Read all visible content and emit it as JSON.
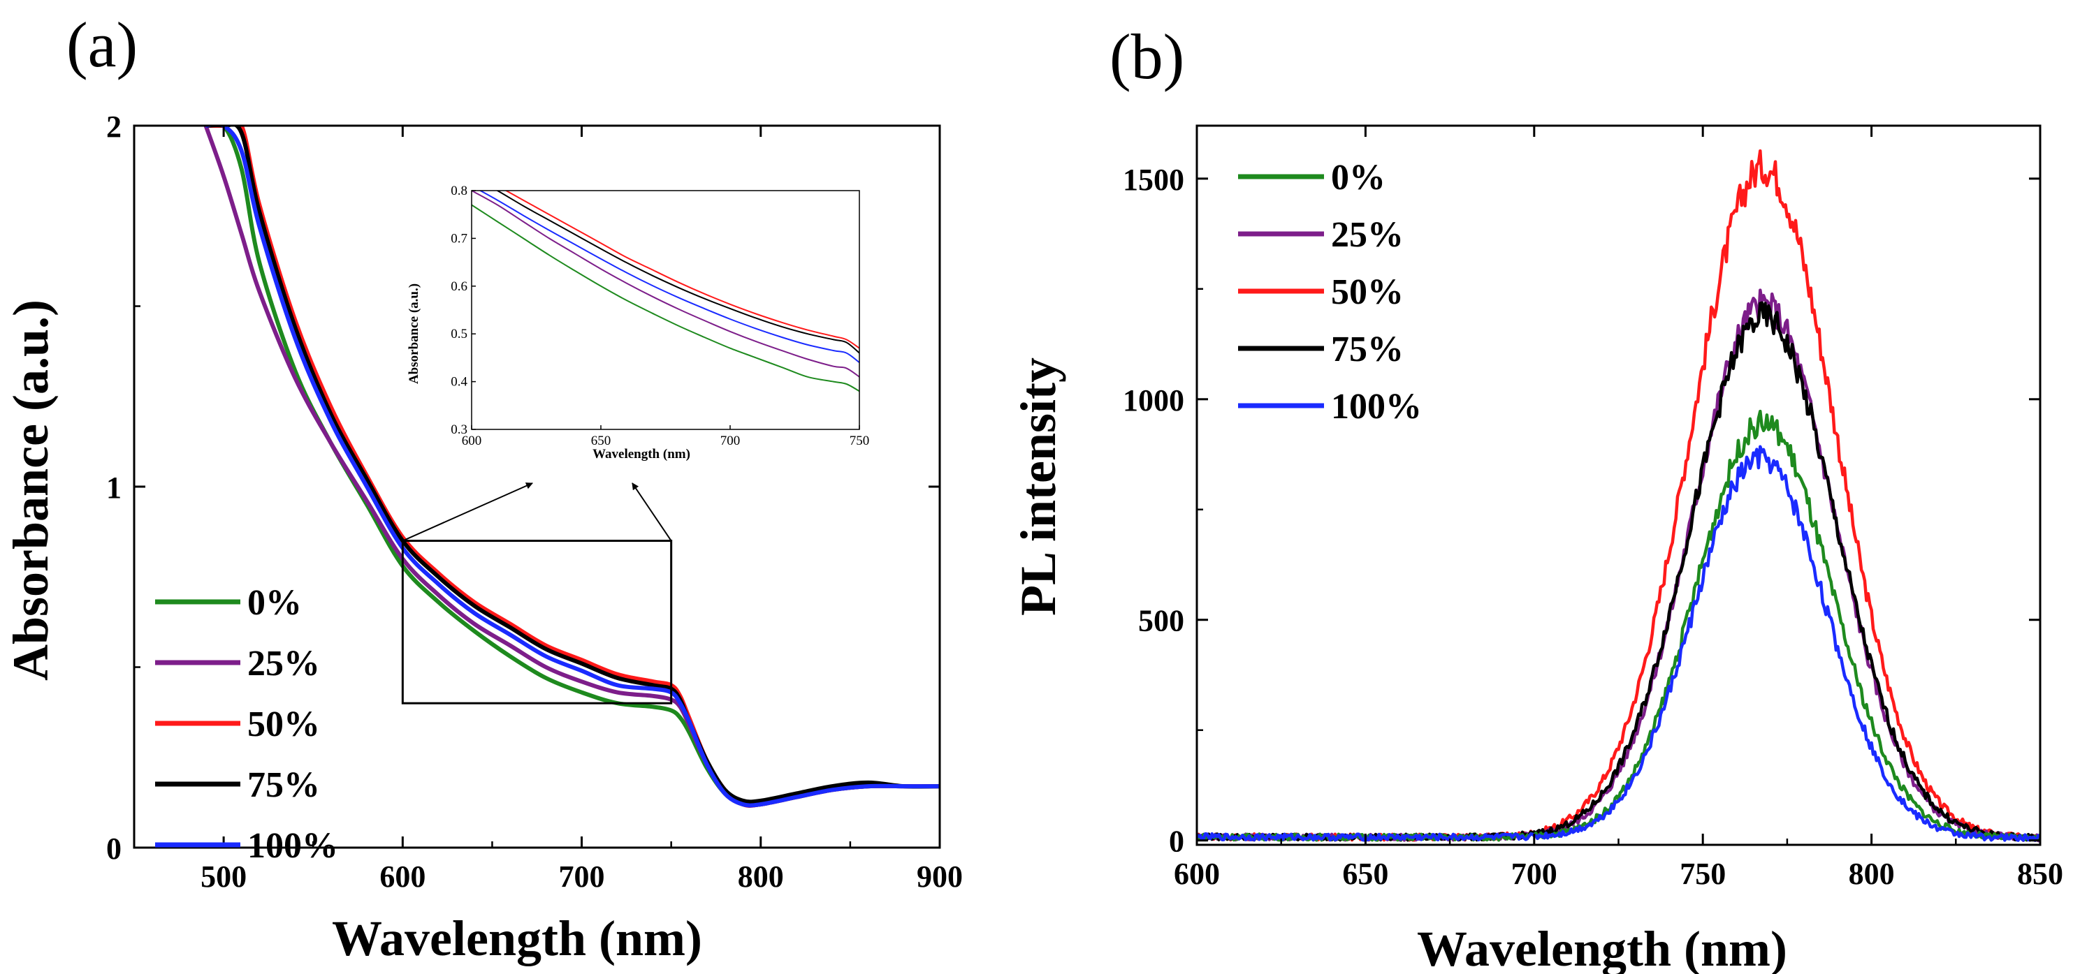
{
  "colors": {
    "0%": "#1e8a1e",
    "25%": "#7d1e8a",
    "50%": "#ff1a1a",
    "75%": "#000000",
    "100%": "#1a2bff"
  },
  "chart_data": [
    {
      "panel": "(a)",
      "type": "line",
      "xlabel": "Wavelength (nm)",
      "ylabel": "Absorbance (a.u.)",
      "xlim": [
        450,
        900
      ],
      "ylim": [
        0,
        2
      ],
      "xticks": [
        "500",
        "600",
        "700",
        "800",
        "900"
      ],
      "yticks": [
        "0",
        "1",
        "2"
      ],
      "legend_position": "bottom-left",
      "legend": [
        "0%",
        "25%",
        "50%",
        "75%",
        "100%"
      ],
      "x": [
        490,
        500,
        510,
        520,
        540,
        560,
        580,
        600,
        620,
        640,
        660,
        680,
        700,
        720,
        740,
        750,
        755,
        760,
        770,
        780,
        790,
        800,
        820,
        840,
        860,
        880,
        900
      ],
      "series": [
        {
          "name": "0%",
          "values": [
            2.0,
            2.0,
            1.88,
            1.62,
            1.32,
            1.12,
            0.95,
            0.78,
            0.68,
            0.6,
            0.53,
            0.47,
            0.43,
            0.4,
            0.39,
            0.38,
            0.36,
            0.32,
            0.22,
            0.15,
            0.12,
            0.12,
            0.14,
            0.16,
            0.17,
            0.17,
            0.17
          ]
        },
        {
          "name": "25%",
          "values": [
            2.0,
            1.86,
            1.7,
            1.54,
            1.3,
            1.12,
            0.96,
            0.8,
            0.7,
            0.62,
            0.56,
            0.5,
            0.46,
            0.43,
            0.42,
            0.41,
            0.39,
            0.34,
            0.23,
            0.15,
            0.12,
            0.12,
            0.14,
            0.16,
            0.17,
            0.17,
            0.17
          ]
        },
        {
          "name": "50%",
          "values": [
            2.0,
            2.0,
            2.0,
            1.78,
            1.46,
            1.22,
            1.03,
            0.86,
            0.76,
            0.68,
            0.62,
            0.56,
            0.52,
            0.48,
            0.46,
            0.45,
            0.42,
            0.36,
            0.24,
            0.16,
            0.12,
            0.12,
            0.14,
            0.16,
            0.17,
            0.17,
            0.17
          ]
        },
        {
          "name": "75%",
          "values": [
            2.0,
            2.0,
            1.98,
            1.76,
            1.44,
            1.2,
            1.02,
            0.85,
            0.75,
            0.67,
            0.61,
            0.55,
            0.51,
            0.47,
            0.45,
            0.44,
            0.41,
            0.35,
            0.24,
            0.16,
            0.13,
            0.13,
            0.15,
            0.17,
            0.18,
            0.17,
            0.17
          ]
        },
        {
          "name": "100%",
          "values": [
            2.0,
            2.0,
            1.93,
            1.72,
            1.41,
            1.18,
            1.0,
            0.83,
            0.73,
            0.65,
            0.59,
            0.53,
            0.49,
            0.45,
            0.44,
            0.43,
            0.4,
            0.35,
            0.23,
            0.15,
            0.12,
            0.12,
            0.14,
            0.16,
            0.17,
            0.17,
            0.17
          ]
        }
      ],
      "inset": {
        "xlabel": "Wavelength (nm)",
        "ylabel": "Absorbance (a.u.)",
        "xlim": [
          600,
          750
        ],
        "ylim": [
          0.3,
          0.8
        ],
        "xticks": [
          "600",
          "650",
          "700",
          "750"
        ],
        "yticks": [
          "0.3",
          "0.4",
          "0.5",
          "0.6",
          "0.7",
          "0.8"
        ],
        "x": [
          600,
          610,
          620,
          630,
          640,
          650,
          660,
          670,
          680,
          690,
          700,
          710,
          720,
          730,
          740,
          745,
          750
        ],
        "series": [
          {
            "name": "0%",
            "values": [
              0.77,
              0.735,
              0.7,
              0.665,
              0.632,
              0.6,
              0.57,
              0.543,
              0.517,
              0.493,
              0.47,
              0.45,
              0.43,
              0.41,
              0.4,
              0.395,
              0.38
            ]
          },
          {
            "name": "25%",
            "values": [
              0.8,
              0.77,
              0.735,
              0.7,
              0.668,
              0.636,
              0.606,
              0.578,
              0.552,
              0.528,
              0.505,
              0.484,
              0.465,
              0.447,
              0.432,
              0.428,
              0.41
            ]
          },
          {
            "name": "50%",
            "values": [
              0.84,
              0.81,
              0.78,
              0.75,
              0.72,
              0.69,
              0.66,
              0.634,
              0.608,
              0.584,
              0.562,
              0.542,
              0.524,
              0.508,
              0.495,
              0.488,
              0.47
            ]
          },
          {
            "name": "75%",
            "values": [
              0.83,
              0.8,
              0.768,
              0.738,
              0.708,
              0.678,
              0.649,
              0.622,
              0.597,
              0.574,
              0.553,
              0.533,
              0.515,
              0.5,
              0.488,
              0.482,
              0.46
            ]
          },
          {
            "name": "100%",
            "values": [
              0.81,
              0.78,
              0.748,
              0.717,
              0.687,
              0.657,
              0.628,
              0.601,
              0.576,
              0.553,
              0.531,
              0.511,
              0.493,
              0.477,
              0.465,
              0.46,
              0.44
            ]
          }
        ]
      }
    },
    {
      "panel": "(b)",
      "type": "line",
      "xlabel": "Wavelength (nm)",
      "ylabel": "PL intensity",
      "xlim": [
        600,
        850
      ],
      "ylim": [
        -10,
        1620
      ],
      "xticks": [
        "600",
        "650",
        "700",
        "750",
        "800",
        "850"
      ],
      "yticks": [
        "0",
        "500",
        "1000",
        "1500"
      ],
      "legend_position": "top-left",
      "legend": [
        "0%",
        "25%",
        "50%",
        "75%",
        "100%"
      ],
      "series": [
        {
          "name": "0%",
          "peak_x": 768,
          "peak": 940,
          "width": 20
        },
        {
          "name": "25%",
          "peak_x": 768,
          "peak": 1210,
          "width": 21
        },
        {
          "name": "50%",
          "peak_x": 768,
          "peak": 1520,
          "width": 21.5
        },
        {
          "name": "75%",
          "peak_x": 768,
          "peak": 1180,
          "width": 21.5
        },
        {
          "name": "100%",
          "peak_x": 767,
          "peak": 860,
          "width": 19.5
        }
      ]
    }
  ]
}
